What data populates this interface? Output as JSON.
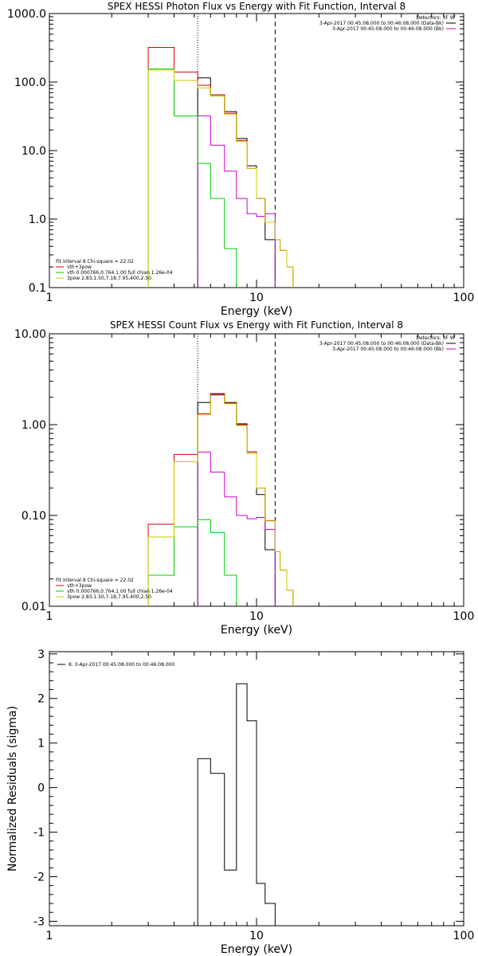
{
  "chart_data": [
    {
      "id": "photon",
      "type": "line",
      "title": "SPEX HESSI Photon Flux vs Energy with Fit Function, Interval 8",
      "xlabel": "Energy (keV)",
      "ylabel": "",
      "xscale": "log",
      "yscale": "log",
      "xlim": [
        1,
        100
      ],
      "ylim": [
        0.1,
        1000
      ],
      "x_ticks": [
        "1",
        "10",
        "100"
      ],
      "y_ticks": [
        "1000.0",
        "100.0",
        "10.0",
        "1.0",
        "0.1"
      ],
      "vlines": [
        {
          "x": 5.2,
          "style": "dotted"
        },
        {
          "x": 12.3,
          "style": "dashed"
        }
      ],
      "legend_top": {
        "header": "Detectors: 3F 9F",
        "lines": [
          {
            "text": "3-Apr-2017 00:45:08.000 to 00:46:08.000 (Data-Bk)",
            "color": "#000000"
          },
          {
            "text": "3-Apr-2017 00:45:08.000 to 00:46:08.000 (Bk)",
            "color": "#cc00cc"
          }
        ]
      },
      "legend_bottom": {
        "header": "Fit Interval  8   Chi-square = 22.02",
        "lines": [
          {
            "text": "vth+3pow",
            "color": "#dd0000"
          },
          {
            "text": "vth 0.000766,0.764,1.00  full chian 1.26e-04",
            "color": "#00cc00"
          },
          {
            "text": "3pow 2.83,1.50,7.18,7.95,400,2.50",
            "color": "#cccc00"
          }
        ]
      },
      "series": [
        {
          "name": "Data-Bk",
          "color": "#000000",
          "edges": [
            5.2,
            6.0,
            7.0,
            8.0,
            9.0,
            10.0,
            11.0,
            12.3
          ],
          "values": [
            115,
            65,
            37,
            15,
            6,
            2.0,
            0.5
          ]
        },
        {
          "name": "Bk",
          "color": "#cc00cc",
          "edges": [
            5.2,
            6.0,
            7.0,
            8.0,
            9.0,
            10.0,
            11.0,
            12.3
          ],
          "values": [
            32,
            12,
            5,
            2,
            1.2,
            1.1,
            1.2
          ]
        },
        {
          "name": "vth+3pow",
          "color": "#dd0000",
          "edges": [
            3.0,
            4.0,
            5.2,
            6.0,
            7.0,
            8.0,
            9.0,
            10.0,
            11.0,
            12.3,
            13.0,
            14.0,
            15.0
          ],
          "values": [
            320,
            140,
            90,
            65,
            35,
            14,
            5.5,
            2.0,
            0.9,
            0.5,
            0.35,
            0.2
          ]
        },
        {
          "name": "vth",
          "color": "#00cc00",
          "edges": [
            3.0,
            4.0,
            5.2,
            6.0,
            7.0,
            8.0
          ],
          "values": [
            155,
            32,
            6.5,
            2,
            0.37
          ]
        },
        {
          "name": "3pow",
          "color": "#cccc00",
          "edges": [
            3.0,
            4.0,
            5.2,
            6.0,
            7.0,
            8.0,
            9.0,
            10.0,
            11.0,
            12.3,
            13.0,
            14.0,
            15.0
          ],
          "values": [
            150,
            105,
            82,
            62,
            34,
            13.5,
            5.5,
            2.0,
            0.9,
            0.5,
            0.35,
            0.2
          ]
        }
      ]
    },
    {
      "id": "count",
      "type": "line",
      "title": "SPEX HESSI Count Flux vs Energy with Fit Function, Interval 8",
      "xlabel": "Energy (keV)",
      "ylabel": "",
      "xscale": "log",
      "yscale": "log",
      "xlim": [
        1,
        100
      ],
      "ylim": [
        0.01,
        10
      ],
      "x_ticks": [
        "1",
        "10",
        "100"
      ],
      "y_ticks": [
        "10.00",
        "1.00",
        "0.10",
        "0.01"
      ],
      "vlines": [
        {
          "x": 5.2,
          "style": "dotted"
        },
        {
          "x": 12.3,
          "style": "dashed"
        }
      ],
      "legend_top": {
        "header": "Detectors: 3F 9F",
        "lines": [
          {
            "text": "3-Apr-2017 00:45:08.000 to 00:46:08.000 (Data-Bk)",
            "color": "#000000"
          },
          {
            "text": "3-Apr-2017 00:45:08.000 to 00:46:08.000 (Bk)",
            "color": "#cc00cc"
          }
        ]
      },
      "legend_bottom": {
        "header": "Fit Interval  8   Chi-square = 22.02",
        "lines": [
          {
            "text": "vth+3pow",
            "color": "#dd0000"
          },
          {
            "text": "vth 0.000766,0.764,1.00  full chian 1.26e-04",
            "color": "#00cc00"
          },
          {
            "text": "3pow 2.83,1.50,7.18,7.95,400,2.50",
            "color": "#cccc00"
          }
        ]
      },
      "series": [
        {
          "name": "Data-Bk",
          "color": "#000000",
          "edges": [
            5.2,
            6.0,
            7.0,
            8.0,
            9.0,
            10.0,
            11.0,
            12.3
          ],
          "values": [
            1.75,
            2.15,
            1.75,
            1.02,
            0.5,
            0.17,
            0.042
          ]
        },
        {
          "name": "Bk",
          "color": "#cc00cc",
          "edges": [
            5.2,
            6.0,
            7.0,
            8.0,
            9.0,
            10.0,
            11.0,
            12.3
          ],
          "values": [
            0.5,
            0.3,
            0.16,
            0.1,
            0.092,
            0.095,
            0.07
          ]
        },
        {
          "name": "vth+3pow",
          "color": "#dd0000",
          "edges": [
            3.0,
            4.0,
            5.2,
            6.0,
            7.0,
            8.0,
            9.0,
            10.0,
            11.0,
            12.3,
            13.0,
            14.0,
            15.0
          ],
          "values": [
            0.08,
            0.47,
            1.32,
            2.2,
            1.72,
            1.0,
            0.5,
            0.2,
            0.088,
            0.04,
            0.025,
            0.015
          ]
        },
        {
          "name": "vth",
          "color": "#00cc00",
          "edges": [
            3.0,
            4.0,
            5.2,
            6.0,
            7.0,
            8.0
          ],
          "values": [
            0.022,
            0.075,
            0.09,
            0.065,
            0.022
          ]
        },
        {
          "name": "3pow",
          "color": "#cccc00",
          "edges": [
            3.0,
            4.0,
            5.2,
            6.0,
            7.0,
            8.0,
            9.0,
            10.0,
            11.0,
            12.3,
            13.0,
            14.0,
            15.0
          ],
          "values": [
            0.058,
            0.39,
            1.28,
            2.1,
            1.7,
            0.97,
            0.48,
            0.2,
            0.087,
            0.04,
            0.025,
            0.015
          ]
        }
      ]
    },
    {
      "id": "residuals",
      "type": "line",
      "title": "",
      "xlabel": "Energy (keV)",
      "ylabel": "Normalized Residuals (sigma)",
      "xscale": "log",
      "yscale": "linear",
      "xlim": [
        1,
        100
      ],
      "ylim": [
        -3.1,
        3.05
      ],
      "x_ticks": [
        "1",
        "10",
        "100"
      ],
      "y_ticks": [
        "3",
        "2",
        "1",
        "0",
        "-1",
        "-2",
        "-3"
      ],
      "legend": {
        "lines": [
          {
            "text": "8.  3-Apr-2017 00:45:08.000 to 00:46:08.000",
            "color": "#000000"
          }
        ]
      },
      "series": [
        {
          "name": "8.  3-Apr-2017 00:45:08.000 to 00:46:08.000",
          "color": "#000000",
          "edges": [
            5.2,
            6.0,
            7.0,
            8.0,
            9.0,
            10.0,
            11.0,
            12.3
          ],
          "values": [
            0.65,
            0.32,
            -1.85,
            2.33,
            1.5,
            -2.15,
            -2.6
          ]
        }
      ]
    }
  ]
}
